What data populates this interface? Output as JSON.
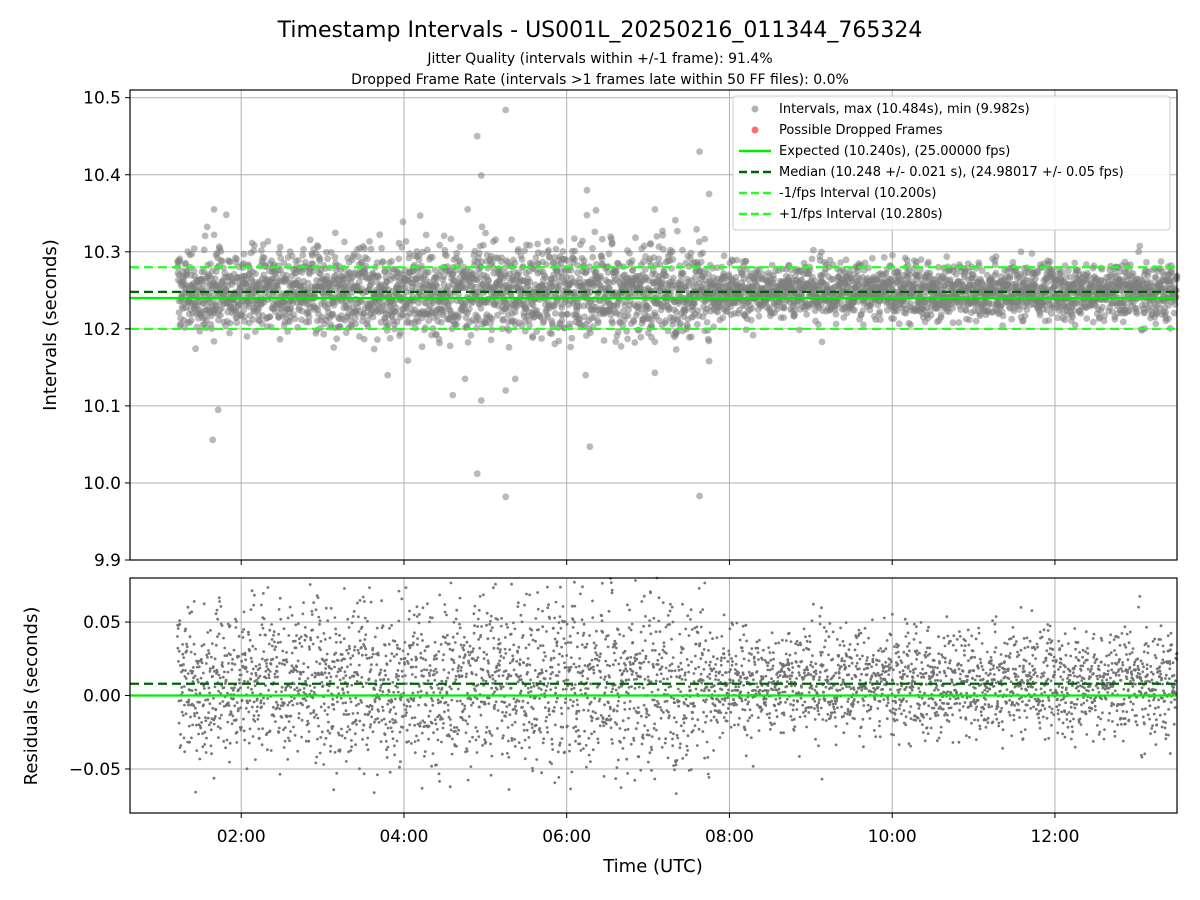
{
  "chart_data": {
    "title": "Timestamp Intervals - US001L_20250216_011344_765324",
    "subtitle_lines": [
      "Jitter Quality (intervals within +/-1 frame): 91.4%",
      "Dropped Frame Rate (intervals >1 frames late within 50 FF files): 0.0%"
    ],
    "colors": {
      "points": "#808080",
      "dropped": "#ff3030",
      "expected": "#00ee00",
      "median": "#006400",
      "fps_bounds": "#22ff22",
      "grid": "#b0b0b0"
    },
    "x_axis": {
      "label": "Time (UTC)",
      "range": [
        "00:38",
        "13:30"
      ],
      "tick_labels": [
        "02:00",
        "04:00",
        "06:00",
        "08:00",
        "10:00",
        "12:00"
      ],
      "tick_times": [
        "02:00",
        "04:00",
        "06:00",
        "08:00",
        "10:00",
        "12:00"
      ],
      "data_start": "01:13",
      "data_end": "13:30"
    },
    "top": {
      "type": "scatter",
      "ylabel": "Intervals (seconds)",
      "ylim": [
        9.9,
        10.51
      ],
      "yticks": [
        9.9,
        10.0,
        10.1,
        10.2,
        10.3,
        10.4,
        10.5
      ],
      "ytick_labels": [
        "9.9",
        "10.0",
        "10.1",
        "10.2",
        "10.3",
        "10.4",
        "10.5"
      ],
      "grid": true,
      "legend_position": "top-right",
      "legend": [
        "Intervals, max (10.484s), min (9.982s)",
        "Possible Dropped Frames",
        "Expected (10.240s), (25.00000 fps)",
        "Median (10.248 +/- 0.021 s), (24.98017 +/- 0.05 fps)",
        "-1/fps Interval (10.200s)",
        "+1/fps Interval (10.280s)"
      ],
      "expected": 10.24,
      "median": 10.248,
      "median_std": 0.021,
      "lower_bound": 10.2,
      "upper_bound": 10.28,
      "max": 10.484,
      "min": 9.982,
      "notable_points": [
        {
          "t": "01:40",
          "y": 10.355
        },
        {
          "t": "01:49",
          "y": 10.348
        },
        {
          "t": "01:40",
          "y": 10.322
        },
        {
          "t": "01:43",
          "y": 10.095
        },
        {
          "t": "01:39",
          "y": 10.056
        },
        {
          "t": "04:47",
          "y": 10.355
        },
        {
          "t": "04:54",
          "y": 10.45
        },
        {
          "t": "04:57",
          "y": 10.399
        },
        {
          "t": "05:15",
          "y": 10.484
        },
        {
          "t": "04:54",
          "y": 10.012
        },
        {
          "t": "05:15",
          "y": 9.982
        },
        {
          "t": "04:57",
          "y": 10.107
        },
        {
          "t": "05:15",
          "y": 10.12
        },
        {
          "t": "05:22",
          "y": 10.135
        },
        {
          "t": "04:36",
          "y": 10.114
        },
        {
          "t": "04:45",
          "y": 10.135
        },
        {
          "t": "06:15",
          "y": 10.38
        },
        {
          "t": "06:17",
          "y": 10.047
        },
        {
          "t": "06:14",
          "y": 10.14
        },
        {
          "t": "07:38",
          "y": 10.43
        },
        {
          "t": "07:38",
          "y": 9.983
        },
        {
          "t": "07:45",
          "y": 10.375
        },
        {
          "t": "07:05",
          "y": 10.355
        },
        {
          "t": "07:05",
          "y": 10.143
        },
        {
          "t": "07:45",
          "y": 10.158
        },
        {
          "t": "03:48",
          "y": 10.14
        },
        {
          "t": "04:12",
          "y": 10.347
        },
        {
          "t": "11:35",
          "y": 10.3
        }
      ],
      "bulk_spread_by_hour": [
        {
          "range": [
            "01:13",
            "03:00"
          ],
          "std": 0.026
        },
        {
          "range": [
            "03:00",
            "07:45"
          ],
          "std": 0.03
        },
        {
          "range": [
            "07:45",
            "13:30"
          ],
          "std": 0.018
        }
      ]
    },
    "bottom": {
      "type": "scatter",
      "ylabel": "Residuals (seconds)",
      "ylim": [
        -0.08,
        0.08
      ],
      "yticks": [
        -0.05,
        0.0,
        0.05
      ],
      "ytick_labels": [
        "−0.05",
        "0.00",
        "0.05"
      ],
      "grid": true,
      "zero_line": 0.0,
      "median_residual": 0.008
    }
  }
}
